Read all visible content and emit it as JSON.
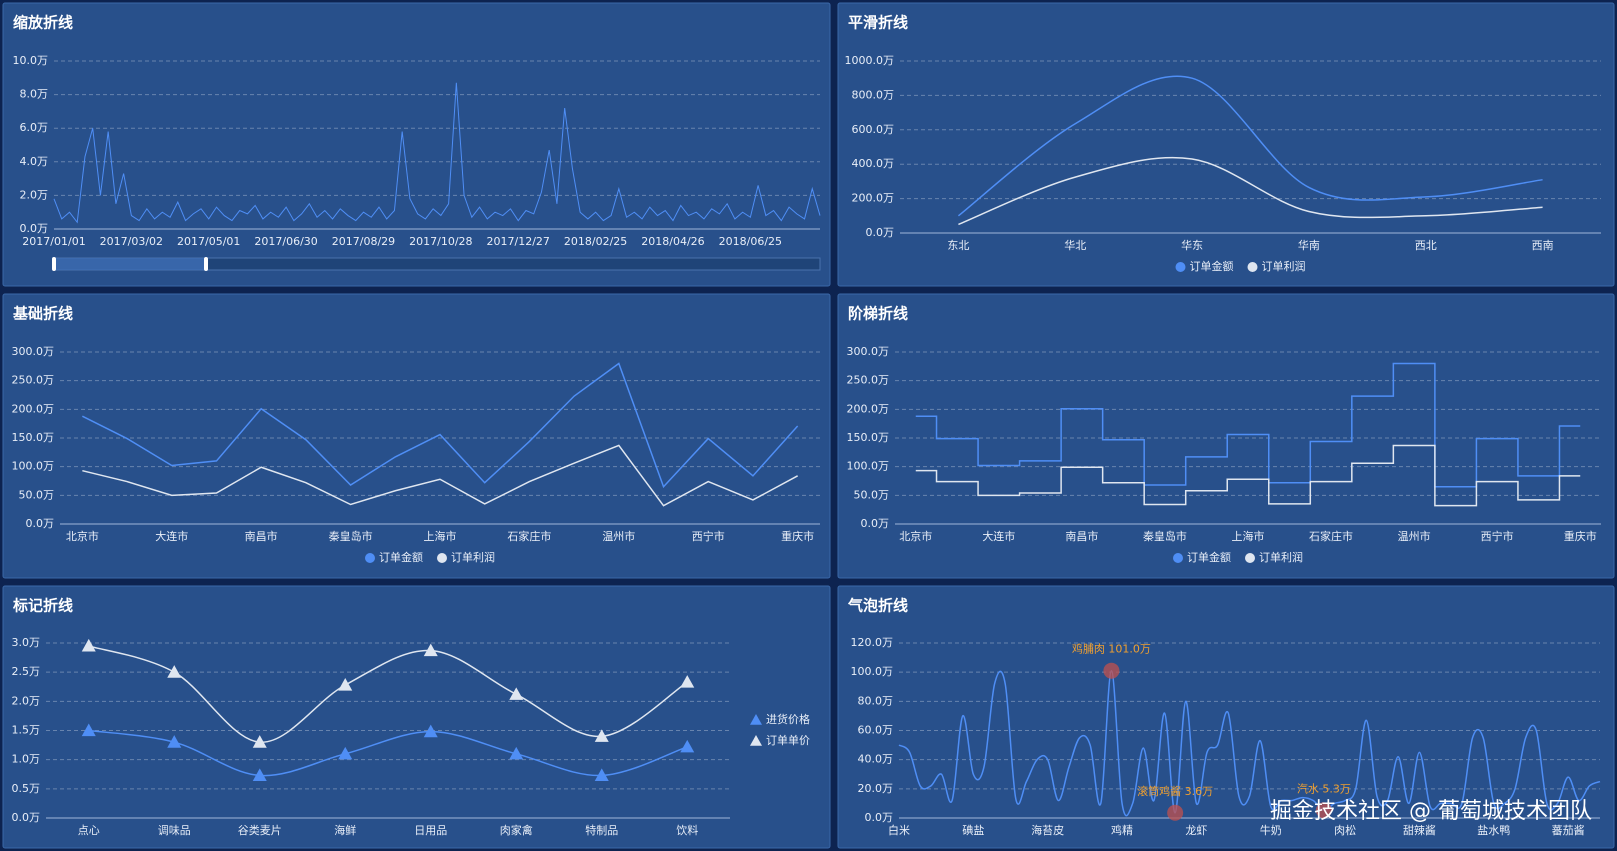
{
  "chart_data": [
    {
      "type": "line",
      "title": "缩放折线",
      "color": "#4f8ef5",
      "datazoom": true,
      "categories": [
        "2017/01/01",
        null,
        null,
        null,
        null,
        null,
        null,
        null,
        null,
        null,
        "2017/03/02",
        null,
        null,
        null,
        null,
        null,
        null,
        null,
        null,
        null,
        "2017/05/01",
        null,
        null,
        null,
        null,
        null,
        null,
        null,
        null,
        null,
        "2017/06/30",
        null,
        null,
        null,
        null,
        null,
        null,
        null,
        null,
        null,
        "2017/08/29",
        null,
        null,
        null,
        null,
        null,
        null,
        null,
        null,
        null,
        "2017/10/28",
        null,
        null,
        null,
        null,
        null,
        null,
        null,
        null,
        null,
        "2017/12/27",
        null,
        null,
        null,
        null,
        null,
        null,
        null,
        null,
        null,
        "2018/02/25",
        null,
        null,
        null,
        null,
        null,
        null,
        null,
        null,
        null,
        "2018/04/26",
        null,
        null,
        null,
        null,
        null,
        null,
        null,
        null,
        null,
        "2018/06/25",
        null,
        null,
        null,
        null,
        null,
        null,
        null,
        null,
        null
      ],
      "values": [
        1.8,
        0.6,
        1.0,
        0.4,
        4.3,
        6.0,
        2.0,
        5.8,
        1.5,
        3.3,
        0.8,
        0.5,
        1.2,
        0.6,
        1.0,
        0.7,
        1.6,
        0.5,
        0.9,
        1.2,
        0.6,
        1.3,
        0.8,
        0.5,
        1.1,
        0.9,
        1.4,
        0.6,
        1.0,
        0.7,
        1.3,
        0.5,
        0.9,
        1.5,
        0.7,
        1.1,
        0.6,
        1.2,
        0.8,
        0.5,
        1.0,
        0.7,
        1.3,
        0.6,
        1.1,
        5.8,
        1.8,
        0.9,
        0.6,
        1.2,
        0.8,
        1.5,
        8.7,
        2.0,
        0.7,
        1.3,
        0.6,
        1.0,
        0.8,
        1.2,
        0.5,
        1.1,
        0.9,
        2.2,
        4.7,
        1.5,
        7.2,
        3.6,
        1.0,
        0.6,
        1.0,
        0.5,
        0.8,
        2.4,
        0.7,
        1.0,
        0.6,
        1.3,
        0.8,
        1.1,
        0.5,
        1.4,
        0.8,
        1.0,
        0.6,
        1.2,
        0.9,
        1.5,
        0.6,
        1.0,
        0.7,
        2.6,
        0.8,
        1.1,
        0.5,
        1.3,
        0.9,
        0.6,
        2.4,
        0.8
      ],
      "ylim": [
        0,
        10
      ],
      "yticks": [
        {
          "value": 0,
          "label": "0.0万"
        },
        {
          "value": 2,
          "label": "2.0万"
        },
        {
          "value": 4,
          "label": "4.0万"
        },
        {
          "value": 6,
          "label": "6.0万"
        },
        {
          "value": 8,
          "label": "8.0万"
        },
        {
          "value": 10,
          "label": "10.0万"
        }
      ],
      "grid": true
    },
    {
      "type": "line",
      "title": "平滑折线",
      "smooth": true,
      "categories": [
        "东北",
        "华北",
        "华东",
        "华南",
        "西北",
        "西南"
      ],
      "series": [
        {
          "name": "订单金额",
          "color": "#4f8ef5",
          "values": [
            100,
            635,
            900,
            265,
            210,
            310
          ]
        },
        {
          "name": "订单利润",
          "color": "#dfe6f0",
          "values": [
            50,
            325,
            430,
            125,
            100,
            150
          ]
        }
      ],
      "ylim": [
        0,
        1000
      ],
      "yticks": [
        {
          "value": 0,
          "label": "0.0万"
        },
        {
          "value": 200,
          "label": "200.0万"
        },
        {
          "value": 400,
          "label": "400.0万"
        },
        {
          "value": 600,
          "label": "600.0万"
        },
        {
          "value": 800,
          "label": "800.0万"
        },
        {
          "value": 1000,
          "label": "1000.0万"
        }
      ],
      "grid": true,
      "legend": "bottom"
    },
    {
      "type": "line",
      "title": "基础折线",
      "categories": [
        "北京市",
        null,
        "大连市",
        null,
        "南昌市",
        null,
        "秦皇岛市",
        null,
        "上海市",
        null,
        "石家庄市",
        null,
        "温州市",
        null,
        "西宁市",
        null,
        "重庆市"
      ],
      "series": [
        {
          "name": "订单金额",
          "color": "#4f8ef5",
          "values": [
            188,
            149,
            102,
            110,
            201,
            147,
            68,
            117,
            156,
            72,
            144,
            223,
            280,
            65,
            149,
            84,
            171
          ]
        },
        {
          "name": "订单利润",
          "color": "#dfe6f0",
          "values": [
            93,
            74,
            50,
            54,
            99,
            72,
            34,
            58,
            78,
            35,
            74,
            106,
            137,
            32,
            74,
            42,
            84
          ]
        }
      ],
      "ylim": [
        0,
        300
      ],
      "yticks": [
        {
          "value": 0,
          "label": "0.0万"
        },
        {
          "value": 50,
          "label": "50.0万"
        },
        {
          "value": 100,
          "label": "100.0万"
        },
        {
          "value": 150,
          "label": "150.0万"
        },
        {
          "value": 200,
          "label": "200.0万"
        },
        {
          "value": 250,
          "label": "250.0万"
        },
        {
          "value": 300,
          "label": "300.0万"
        }
      ],
      "grid": true,
      "legend": "bottom"
    },
    {
      "type": "line",
      "title": "阶梯折线",
      "step": "middle",
      "categories": [
        "北京市",
        null,
        "大连市",
        null,
        "南昌市",
        null,
        "秦皇岛市",
        null,
        "上海市",
        null,
        "石家庄市",
        null,
        "温州市",
        null,
        "西宁市",
        null,
        "重庆市"
      ],
      "series": [
        {
          "name": "订单金额",
          "color": "#4f8ef5",
          "values": [
            188,
            149,
            102,
            110,
            201,
            147,
            68,
            117,
            156,
            72,
            144,
            223,
            280,
            65,
            149,
            84,
            171
          ]
        },
        {
          "name": "订单利润",
          "color": "#dfe6f0",
          "values": [
            93,
            74,
            50,
            54,
            99,
            72,
            34,
            58,
            78,
            35,
            74,
            106,
            137,
            32,
            74,
            42,
            84
          ]
        }
      ],
      "ylim": [
        0,
        300
      ],
      "yticks": [
        {
          "value": 0,
          "label": "0.0万"
        },
        {
          "value": 50,
          "label": "50.0万"
        },
        {
          "value": 100,
          "label": "100.0万"
        },
        {
          "value": 150,
          "label": "150.0万"
        },
        {
          "value": 200,
          "label": "200.0万"
        },
        {
          "value": 250,
          "label": "250.0万"
        },
        {
          "value": 300,
          "label": "300.0万"
        }
      ],
      "grid": true,
      "legend": "bottom"
    },
    {
      "type": "line",
      "title": "标记折线",
      "smooth": true,
      "symbol": "triangle",
      "categories": [
        "点心",
        "调味品",
        "谷类麦片",
        "海鲜",
        "日用品",
        "肉家禽",
        "特制品",
        "饮料"
      ],
      "series": [
        {
          "name": "进货价格",
          "color": "#4f8ef5",
          "values": [
            1.5,
            1.3,
            0.73,
            1.1,
            1.48,
            1.1,
            0.73,
            1.22
          ]
        },
        {
          "name": "订单单价",
          "color": "#dfe6f0",
          "values": [
            2.95,
            2.5,
            1.3,
            2.28,
            2.87,
            2.12,
            1.4,
            2.33
          ]
        }
      ],
      "ylim": [
        0,
        3
      ],
      "yticks": [
        {
          "value": 0,
          "label": "0.0万"
        },
        {
          "value": 0.5,
          "label": "0.5万"
        },
        {
          "value": 1,
          "label": "1.0万"
        },
        {
          "value": 1.5,
          "label": "1.5万"
        },
        {
          "value": 2,
          "label": "2.0万"
        },
        {
          "value": 2.5,
          "label": "2.5万"
        },
        {
          "value": 3,
          "label": "3.0万"
        }
      ],
      "grid": true,
      "legend": "right"
    },
    {
      "type": "line",
      "title": "气泡折线",
      "smooth": true,
      "color": "#4f8ef5",
      "marker_color": "#c0504d",
      "categories": [
        "白米",
        null,
        null,
        null,
        null,
        null,
        null,
        "碘盐",
        null,
        null,
        null,
        null,
        null,
        null,
        "海苔皮",
        null,
        null,
        null,
        null,
        null,
        null,
        "鸡精",
        null,
        null,
        null,
        null,
        null,
        null,
        "龙虾",
        null,
        null,
        null,
        null,
        null,
        null,
        "牛奶",
        null,
        null,
        null,
        null,
        null,
        null,
        "肉松",
        null,
        null,
        null,
        null,
        null,
        null,
        "甜辣酱",
        null,
        null,
        null,
        null,
        null,
        null,
        "盐水鸭",
        null,
        null,
        null,
        null,
        null,
        null,
        "蕃茄酱",
        null,
        null,
        null
      ],
      "values": [
        50,
        45,
        22,
        22,
        30,
        12,
        70,
        30,
        35,
        92,
        92,
        13,
        25,
        40,
        40,
        12,
        35,
        55,
        50,
        10,
        101.0,
        10,
        10,
        48,
        12,
        72,
        3.6,
        80,
        10,
        45,
        50,
        72,
        15,
        15,
        53,
        8,
        12,
        12,
        14,
        12,
        5.3,
        10,
        12,
        20,
        67,
        15,
        12,
        42,
        10,
        45,
        8,
        10,
        10,
        10,
        55,
        55,
        10,
        10,
        20,
        55,
        60,
        10,
        10,
        28,
        12,
        22,
        25
      ],
      "value_labels": [
        null,
        null,
        null,
        null,
        null,
        null,
        null,
        null,
        null,
        null,
        null,
        null,
        null,
        null,
        null,
        null,
        null,
        null,
        null,
        null,
        "鸡脯肉 101.0万",
        null,
        null,
        null,
        null,
        null,
        "滚筒鸡酱 3.6万",
        null,
        null,
        null,
        null,
        null,
        null,
        null,
        null,
        null,
        null,
        null,
        null,
        null,
        "汽水 5.3万",
        null,
        null,
        null,
        null,
        null,
        null,
        null,
        null,
        null,
        null,
        null,
        null,
        null,
        null,
        null,
        null,
        null,
        null,
        null,
        null,
        null,
        null,
        null,
        null,
        null,
        null
      ],
      "ylim": [
        0,
        120
      ],
      "yticks": [
        {
          "value": 0,
          "label": "0.0万"
        },
        {
          "value": 20,
          "label": "20.0万"
        },
        {
          "value": 40,
          "label": "40.0万"
        },
        {
          "value": 60,
          "label": "60.0万"
        },
        {
          "value": 80,
          "label": "80.0万"
        },
        {
          "value": 100,
          "label": "100.0万"
        },
        {
          "value": 120,
          "label": "120.0万"
        }
      ],
      "grid": true
    }
  ],
  "watermark": "掘金技术社区 @ 葡萄城技术团队"
}
